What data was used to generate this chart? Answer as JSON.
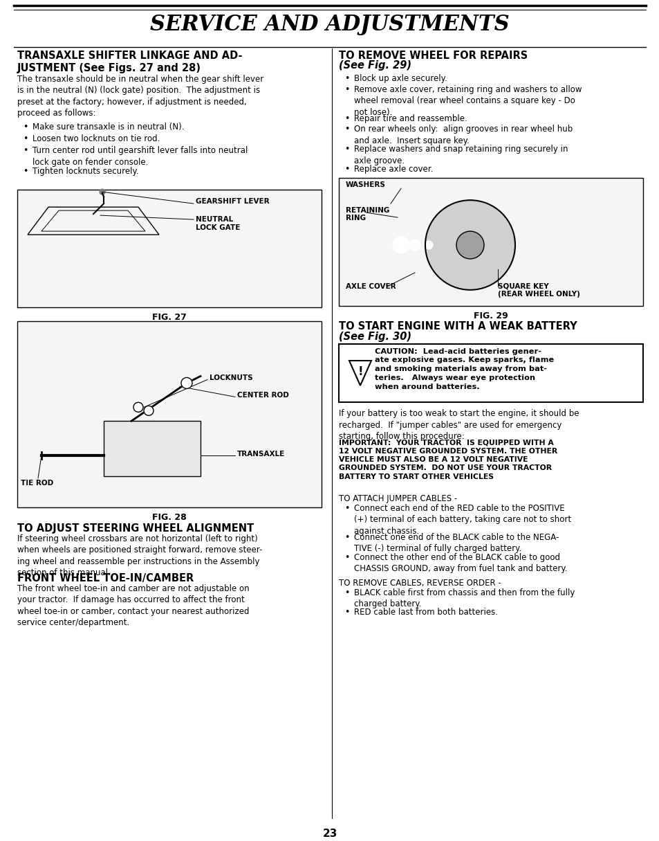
{
  "page_number": "23",
  "title": "SERVICE AND ADJUSTMENTS",
  "bg_color": "#ffffff",
  "text_color": "#000000",
  "title_fontsize": 22,
  "body_fontsize": 8.5,
  "header_fontsize": 10,
  "left_col": {
    "section1_title": "TRANSAXLE SHIFTER LINKAGE AND AD-\nJUSTMENT (See Figs. 27 and 28)",
    "section1_body": "The transaxle should be in neutral when the gear shift lever\nis in the neutral (N) (lock gate) position.  The adjustment is\npreset at the factory; however, if adjustment is needed,\nproceed as follows:",
    "section1_bullets": [
      "Make sure transaxle is in neutral (N).",
      "Loosen two locknuts on tie rod.",
      "Turn center rod until gearshift lever falls into neutral\nlock gate on fender console.",
      "Tighten locknuts securely."
    ],
    "fig27_caption": "FIG. 27",
    "fig27_labels": [
      "GEARSHIFT LEVER",
      "NEUTRAL\nLOCK GATE"
    ],
    "fig28_caption": "FIG. 28",
    "fig28_labels": [
      "LOCKNUTS",
      "CENTER ROD",
      "TIE ROD",
      "TRANSAXLE"
    ],
    "section2_title": "TO ADJUST STEERING WHEEL ALIGNMENT",
    "section2_body": "If steering wheel crossbars are not horizontal (left to right)\nwhen wheels are positioned straight forward, remove steer-\ning wheel and reassemble per instructions in the Assembly\nsection of this manual.",
    "section3_title": "FRONT WHEEL TOE-IN/CAMBER",
    "section3_body": "The front wheel toe-in and camber are not adjustable on\nyour tractor.  If damage has occurred to affect the front\nwheel toe-in or camber, contact your nearest authorized\nservice center/department."
  },
  "right_col": {
    "section1_title": "TO REMOVE WHEEL FOR REPAIRS\n(See Fig. 29)",
    "section1_bullets": [
      "Block up axle securely.",
      "Remove axle cover, retaining ring and washers to allow\nwheel removal (rear wheel contains a square key - Do\nnot lose).",
      "Repair tire and reassemble.",
      "On rear wheels only:  align grooves in rear wheel hub\nand axle.  Insert square key.",
      "Replace washers and snap retaining ring securely in\naxle groove.",
      "Replace axle cover."
    ],
    "fig29_caption": "FIG. 29",
    "fig29_labels": [
      "WASHERS",
      "RETAINING\nRING",
      "AXLE COVER",
      "SQUARE KEY\n(REAR WHEEL ONLY)"
    ],
    "section2_title": "TO START ENGINE WITH A WEAK BATTERY\n(See Fig. 30)",
    "caution_text": "CAUTION:  Lead-acid batteries gener-\nate explosive gases. Keep sparks, flame\nand smoking materials away from bat-\nteries.   Always wear eye protection\nwhen around batteries.",
    "section2_body1": "If your battery is too weak to start the engine, it should be\nrecharged.  If \"jumper cables\" are used for emergency\nstarting, follow this procedure:",
    "important_text": "IMPORTANT:  YOUR TRACTOR  IS EQUIPPED WITH A\n12 VOLT NEGATIVE GROUNDED SYSTEM. THE OTHER\nVEHICLE MUST ALSO BE A 12 VOLT NEGATIVE\nGROUNDED SYSTEM.  DO NOT USE YOUR TRACTOR\nBATTERY TO START OTHER VEHICLES",
    "attach_header": "TO ATTACH JUMPER CABLES -",
    "attach_bullets": [
      "Connect each end of the RED cable to the POSITIVE\n(+) terminal of each battery, taking care not to short\nagainst chassis.",
      "Connect one end of the BLACK cable to the NEGA-\nTIVE (-) terminal of fully charged battery.",
      "Connect the other end of the BLACK cable to good\nCHASSIS GROUND, away from fuel tank and battery."
    ],
    "remove_header": "TO REMOVE CABLES, REVERSE ORDER -",
    "remove_bullets": [
      "BLACK cable first from chassis and then from the fully\ncharged battery.",
      "RED cable last from both batteries."
    ]
  }
}
